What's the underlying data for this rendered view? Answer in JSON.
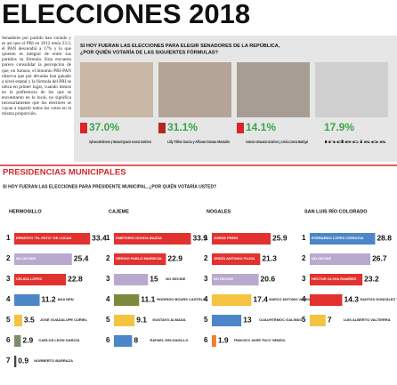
{
  "title": "ELECCIONES 2018",
  "intro": "Senadores por partido han variado y es así que el PRI en 2012 tenía 23.3, el PAN descendió a 17% y lo que quieren es integrar de entre sus partidos su fórmula. Esta encuesta parece consolidar la percepción de que, en Sonora, el binomio PRI-PAN observa que por décadas han ganado a nivel estatal y la fórmula del PRI se ubica en primer lugar, cuando menos en la preferencia de los que se encuestaron en lo local, no significa necesariamente que los electores se vayan a repartir todos los votos en la misma proporción.",
  "senate": {
    "question": "SI HOY FUERAN LAS ELECCIONES PARA ELEGIR SENADORES DE LA REPÚBLICA, ¿POR QUIÉN VOTARÍA DE LAS SIGUIENTES FÓRMULAS?",
    "options": [
      {
        "percent": "37.0%",
        "names": "Sylvana Beltrones y Manuel Ignacio Acosta Gutiérrez"
      },
      {
        "percent": "31.1%",
        "names": "Lilly Téllez García y Alfonso Durazo Montaño"
      },
      {
        "percent": "14.1%",
        "names": "Antonio Astiazarán Gutiérrez y Leticia Cuesta Madrigal"
      },
      {
        "percent": "17.9%",
        "names": "Indecisos"
      }
    ]
  },
  "municipal_title": "PRESIDENCIAS MUNICIPALES",
  "municipal_question": "SI HOY FUERAN LAS ELECCIONES PARA PRESIDENTE MUNICIPAL, ¿POR QUIÉN VOTARÍA USTED?",
  "chart_data": [
    {
      "type": "bar",
      "title": "HERMOSILLO",
      "ranks": [
        1,
        2,
        3,
        4,
        5,
        6,
        7
      ],
      "categories": [
        "ERNESTO \"EL PATO\" DE LUCAS",
        "NO DECIDE",
        "CÉLIDA LÓPEZ",
        "ANA NEN",
        "JOSÉ GUADALUPE CURIEL",
        "CARLOS LEÓN GARCÍA",
        "NORBERTO BARRAZA"
      ],
      "values": [
        33.4,
        25.4,
        22.8,
        11.2,
        3.5,
        2.9,
        0.9
      ],
      "colors": [
        "#e2322f",
        "#b9a9cf",
        "#e2322f",
        "#4d86c8",
        "#f5c342",
        "#7f8c6a",
        "#444444"
      ]
    },
    {
      "type": "bar",
      "title": "CAJEME",
      "ranks": [
        1,
        2,
        3,
        4,
        5,
        6
      ],
      "categories": [
        "EMETERIO OCHOA BAZÚA",
        "SERGIO PABLO MARISCAL",
        "NO DECIDE",
        "RODRIGO BOURS CASTELO",
        "GUSTAVO ALMADA",
        "RAFAEL DELGADILLO"
      ],
      "values": [
        33.9,
        22.9,
        15.0,
        11.1,
        9.1,
        8.0
      ],
      "colors": [
        "#e2322f",
        "#e2322f",
        "#b9a9cf",
        "#7d8a3c",
        "#f5c342",
        "#4d86c8"
      ]
    },
    {
      "type": "bar",
      "title": "NOGALES",
      "ranks": [
        1,
        2,
        3,
        4,
        5,
        6
      ],
      "categories": [
        "JORGE FREIG",
        "JESÚS ANTONIO PUJOL",
        "NO DECIDE",
        "MARCO ANTONIO VALENZUELA",
        "CUAUHTÉMOC GALINDO",
        "FRANCISCO JAVIER \"PACO\" MENDÍVIL"
      ],
      "values": [
        25.9,
        21.3,
        20.6,
        17.4,
        13.0,
        1.9
      ],
      "colors": [
        "#e2322f",
        "#e2322f",
        "#b9a9cf",
        "#f5c342",
        "#4d86c8",
        "#ef7d2d"
      ]
    },
    {
      "type": "bar",
      "title": "SAN LUIS RÍO COLORADO",
      "ranks": [
        1,
        2,
        3,
        4,
        5
      ],
      "categories": [
        "EVERARDO LÓPEZ CÓRDOVA",
        "NO DECIDE",
        "HÉCTOR OLIVIA RAMÍREZ",
        "SANTOS GONZÁLEZ YESCAS",
        "LUIS ALBERTO VALTIERRA"
      ],
      "values": [
        28.8,
        26.7,
        23.2,
        14.3,
        7.0
      ],
      "colors": [
        "#4d86c8",
        "#b9a9cf",
        "#e2322f",
        "#e2322f",
        "#f5c342"
      ]
    }
  ]
}
